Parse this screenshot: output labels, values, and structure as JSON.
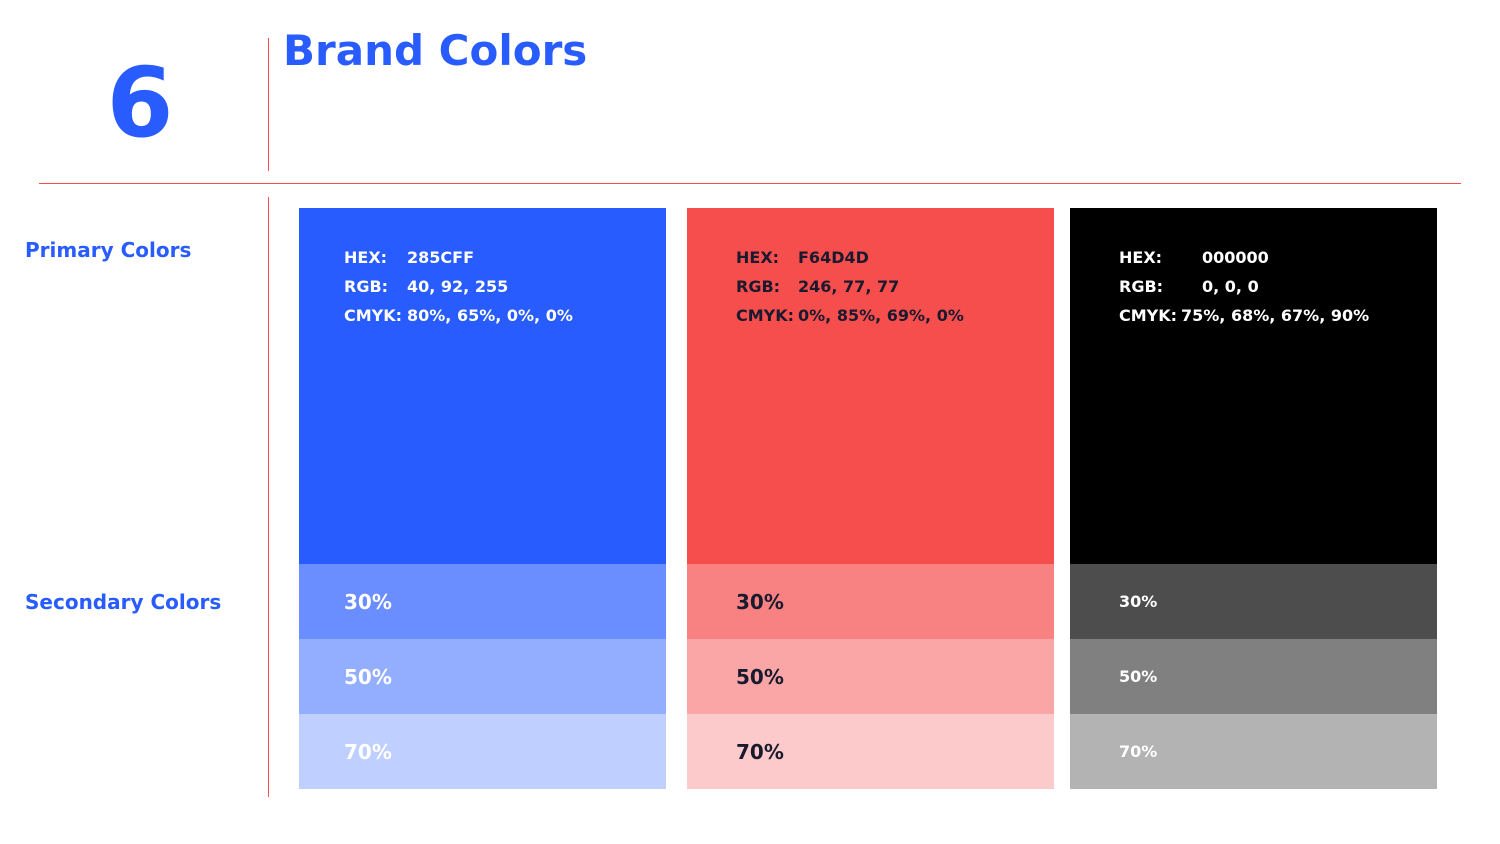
{
  "page": {
    "section_number": "6",
    "title": "Brand Colors"
  },
  "labels": {
    "primary": "Primary Colors",
    "secondary": "Secondary Colors"
  },
  "accent_colors": {
    "title_blue": "#285CFF",
    "rule_red": "#F64D4D"
  },
  "swatches": [
    {
      "name": "blue",
      "color": "#285CFF",
      "text_color": "#FFFFFF",
      "specs": [
        {
          "key": "HEX:",
          "value": "285CFF"
        },
        {
          "key": "RGB:",
          "value": "40, 92, 255"
        },
        {
          "key": "CMYK:",
          "value": "80%, 65%, 0%, 0%"
        }
      ],
      "tints": [
        {
          "label": "30%",
          "color": "#6A8EFF",
          "text_color": "#FFFFFF"
        },
        {
          "label": "50%",
          "color": "#93AEFF",
          "text_color": "#FFFFFF"
        },
        {
          "label": "70%",
          "color": "#BFCFFF",
          "text_color": "#FFFFFF"
        }
      ]
    },
    {
      "name": "red",
      "color": "#F64D4D",
      "text_color": "#1A1A2E",
      "specs": [
        {
          "key": "HEX:",
          "value": "F64D4D"
        },
        {
          "key": "RGB:",
          "value": "246, 77, 77"
        },
        {
          "key": "CMYK:",
          "value": "0%, 85%, 69%, 0%"
        }
      ],
      "tints": [
        {
          "label": "30%",
          "color": "#F88282",
          "text_color": "#1A1A2E"
        },
        {
          "label": "50%",
          "color": "#FAA6A6",
          "text_color": "#1A1A2E"
        },
        {
          "label": "70%",
          "color": "#FCCACA",
          "text_color": "#1A1A2E"
        }
      ]
    },
    {
      "name": "black",
      "color": "#000000",
      "text_color": "#FFFFFF",
      "specs": [
        {
          "key": "HEX:",
          "value": "000000"
        },
        {
          "key": "RGB:",
          "value": "0, 0, 0"
        },
        {
          "key": "CMYK:",
          "value": "75%, 68%, 67%, 90%"
        }
      ],
      "tints": [
        {
          "label": "30%",
          "color": "#4D4D4D",
          "text_color": "#FFFFFF"
        },
        {
          "label": "50%",
          "color": "#808080",
          "text_color": "#FFFFFF"
        },
        {
          "label": "70%",
          "color": "#B3B3B3",
          "text_color": "#FFFFFF"
        }
      ]
    }
  ]
}
